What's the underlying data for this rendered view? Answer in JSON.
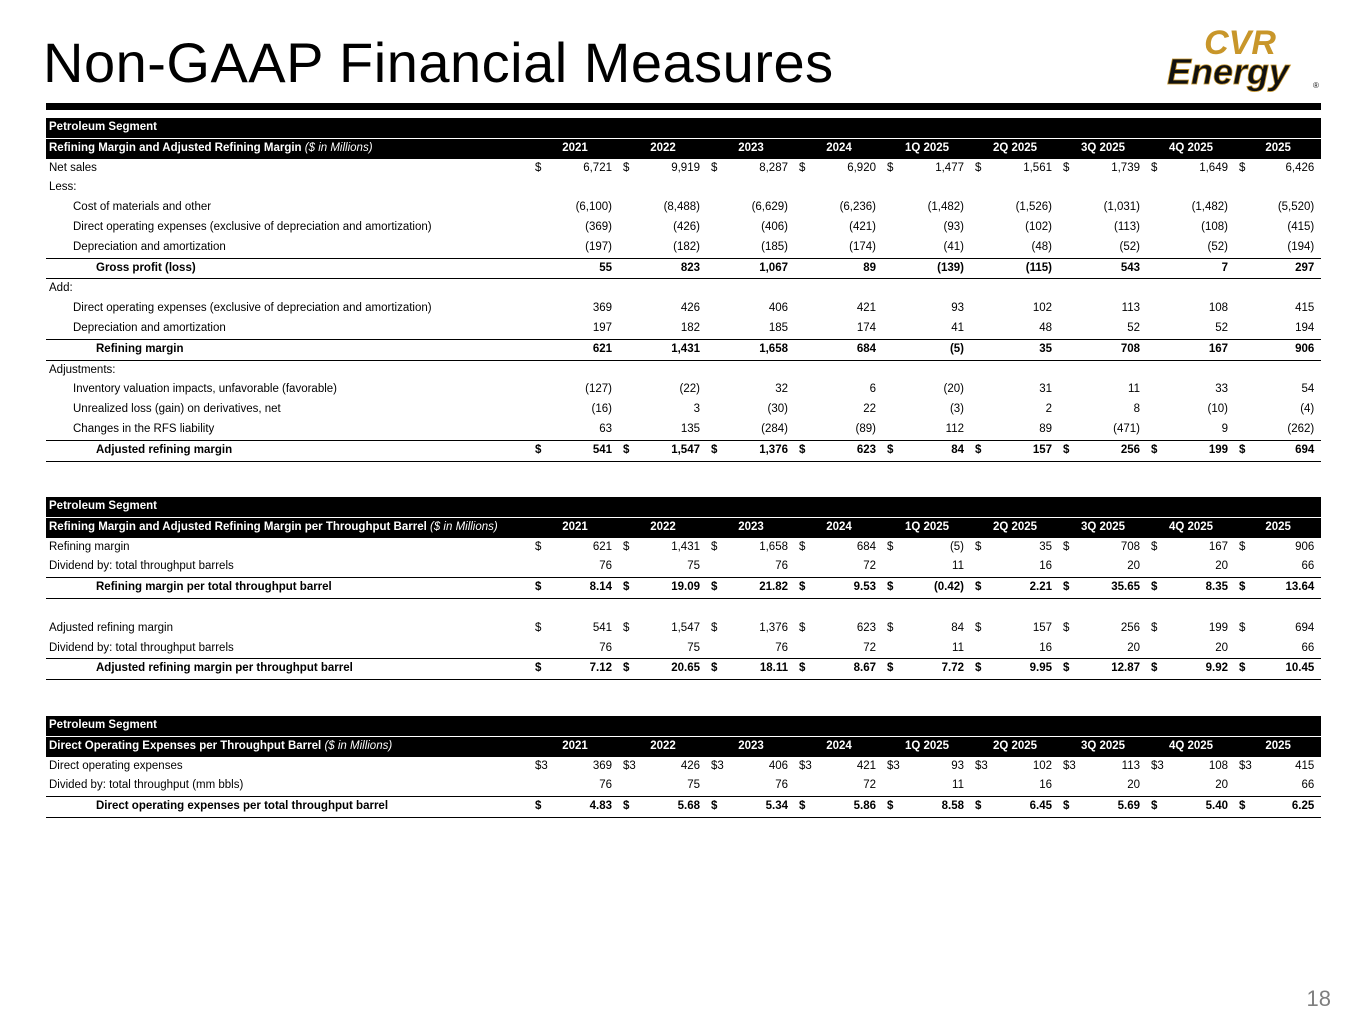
{
  "page": {
    "title": "Non-GAAP Financial Measures",
    "page_number": "18",
    "logo_text_top": "CVR",
    "logo_text_bottom": "Energy",
    "logo_registered": "®"
  },
  "colors": {
    "header_bg": "#000000",
    "header_text": "#ffffff",
    "logo_gold": "#c8962a",
    "logo_black": "#111111",
    "page_number": "#7f7f7f"
  },
  "table1": {
    "segment": "Petroleum Segment",
    "heading": "Refining Margin and Adjusted Refining Margin",
    "unit": "($ in Millions)",
    "columns": [
      "2021",
      "2022",
      "2023",
      "2024",
      "1Q 2025",
      "2Q 2025",
      "3Q 2025",
      "4Q 2025",
      "2025"
    ],
    "rows": [
      {
        "label": "Net sales",
        "indent": 0,
        "style": "",
        "cur": "$",
        "values": [
          "6,721",
          "9,919",
          "8,287",
          "6,920",
          "1,477",
          "1,561",
          "1,739",
          "1,649",
          "6,426"
        ]
      },
      {
        "label": "Less:",
        "indent": 0,
        "style": "",
        "cur": "",
        "values": [
          "",
          "",
          "",
          "",
          "",
          "",
          "",
          "",
          ""
        ]
      },
      {
        "label": "Cost of materials and other",
        "indent": 1,
        "style": "",
        "cur": "",
        "values": [
          "(6,100)",
          "(8,488)",
          "(6,629)",
          "(6,236)",
          "(1,482)",
          "(1,526)",
          "(1,031)",
          "(1,482)",
          "(5,520)"
        ]
      },
      {
        "label": "Direct operating expenses (exclusive of depreciation and amortization)",
        "indent": 1,
        "style": "",
        "cur": "",
        "values": [
          "(369)",
          "(426)",
          "(406)",
          "(421)",
          "(93)",
          "(102)",
          "(113)",
          "(108)",
          "(415)"
        ]
      },
      {
        "label": "Depreciation and amortization",
        "indent": 1,
        "style": "",
        "cur": "",
        "values": [
          "(197)",
          "(182)",
          "(185)",
          "(174)",
          "(41)",
          "(48)",
          "(52)",
          "(52)",
          "(194)"
        ]
      },
      {
        "label": "Gross profit (loss)",
        "indent": 2,
        "style": "total",
        "cur": "",
        "values": [
          "55",
          "823",
          "1,067",
          "89",
          "(139)",
          "(115)",
          "543",
          "7",
          "297"
        ]
      },
      {
        "label": "Add:",
        "indent": 0,
        "style": "",
        "cur": "",
        "values": [
          "",
          "",
          "",
          "",
          "",
          "",
          "",
          "",
          ""
        ]
      },
      {
        "label": "Direct operating expenses (exclusive of depreciation and amortization)",
        "indent": 1,
        "style": "",
        "cur": "",
        "values": [
          "369",
          "426",
          "406",
          "421",
          "93",
          "102",
          "113",
          "108",
          "415"
        ]
      },
      {
        "label": "Depreciation and amortization",
        "indent": 1,
        "style": "",
        "cur": "",
        "values": [
          "197",
          "182",
          "185",
          "174",
          "41",
          "48",
          "52",
          "52",
          "194"
        ]
      },
      {
        "label": "Refining margin",
        "indent": 2,
        "style": "total",
        "cur": "",
        "values": [
          "621",
          "1,431",
          "1,658",
          "684",
          "(5)",
          "35",
          "708",
          "167",
          "906"
        ]
      },
      {
        "label": "Adjustments:",
        "indent": 0,
        "style": "",
        "cur": "",
        "values": [
          "",
          "",
          "",
          "",
          "",
          "",
          "",
          "",
          ""
        ]
      },
      {
        "label": "Inventory valuation impacts, unfavorable (favorable)",
        "indent": 1,
        "style": "",
        "cur": "",
        "values": [
          "(127)",
          "(22)",
          "32",
          "6",
          "(20)",
          "31",
          "11",
          "33",
          "54"
        ]
      },
      {
        "label": "Unrealized loss (gain) on derivatives, net",
        "indent": 1,
        "style": "",
        "cur": "",
        "values": [
          "(16)",
          "3",
          "(30)",
          "22",
          "(3)",
          "2",
          "8",
          "(10)",
          "(4)"
        ]
      },
      {
        "label": "Changes in the RFS liability",
        "indent": 1,
        "style": "",
        "cur": "",
        "values": [
          "63",
          "135",
          "(284)",
          "(89)",
          "112",
          "89",
          "(471)",
          "9",
          "(262)"
        ]
      },
      {
        "label": "Adjusted refining margin",
        "indent": 2,
        "style": "total",
        "cur": "$",
        "values": [
          "541",
          "1,547",
          "1,376",
          "623",
          "84",
          "157",
          "256",
          "199",
          "694"
        ]
      }
    ]
  },
  "table2": {
    "segment": "Petroleum Segment",
    "heading": "Refining Margin and Adjusted Refining Margin per Throughput Barrel",
    "unit": "($ in Millions)",
    "columns": [
      "2021",
      "2022",
      "2023",
      "2024",
      "1Q 2025",
      "2Q 2025",
      "3Q 2025",
      "4Q 2025",
      "2025"
    ],
    "rows": [
      {
        "label": "Refining margin",
        "indent": 0,
        "style": "",
        "cur": "$",
        "values": [
          "621",
          "1,431",
          "1,658",
          "684",
          "(5)",
          "35",
          "708",
          "167",
          "906"
        ]
      },
      {
        "label": "Dividend by: total throughput barrels",
        "indent": 0,
        "style": "",
        "cur": "",
        "values": [
          "76",
          "75",
          "76",
          "72",
          "11",
          "16",
          "20",
          "20",
          "66"
        ]
      },
      {
        "label": "Refining margin per total throughput barrel",
        "indent": 2,
        "style": "total",
        "cur": "$",
        "values": [
          "8.14",
          "19.09",
          "21.82",
          "9.53",
          "(0.42)",
          "2.21",
          "35.65",
          "8.35",
          "13.64"
        ]
      },
      {
        "label": "",
        "indent": 0,
        "style": "",
        "cur": "",
        "values": [
          "",
          "",
          "",
          "",
          "",
          "",
          "",
          "",
          ""
        ]
      },
      {
        "label": "Adjusted refining margin",
        "indent": 0,
        "style": "",
        "cur": "$",
        "values": [
          "541",
          "1,547",
          "1,376",
          "623",
          "84",
          "157",
          "256",
          "199",
          "694"
        ]
      },
      {
        "label": "Dividend by: total throughput barrels",
        "indent": 0,
        "style": "",
        "cur": "",
        "values": [
          "76",
          "75",
          "76",
          "72",
          "11",
          "16",
          "20",
          "20",
          "66"
        ]
      },
      {
        "label": "Adjusted refining margin per throughput barrel",
        "indent": 2,
        "style": "total",
        "cur": "$",
        "values": [
          "7.12",
          "20.65",
          "18.11",
          "8.67",
          "7.72",
          "9.95",
          "12.87",
          "9.92",
          "10.45"
        ]
      }
    ]
  },
  "table3": {
    "segment": "Petroleum Segment",
    "heading": "Direct Operating Expenses per Throughput Barrel",
    "unit": "($ in Millions)",
    "columns": [
      "2021",
      "2022",
      "2023",
      "2024",
      "1Q 2025",
      "2Q 2025",
      "3Q 2025",
      "4Q 2025",
      "2025"
    ],
    "rows": [
      {
        "label": "Direct operating expenses",
        "indent": 0,
        "style": "",
        "cur": "$3",
        "values": [
          "369",
          "426",
          "406",
          "421",
          "93",
          "102",
          "113",
          "108",
          "415"
        ]
      },
      {
        "label": "Divided by: total throughput (mm bbls)",
        "indent": 0,
        "style": "",
        "cur": "",
        "values": [
          "76",
          "75",
          "76",
          "72",
          "11",
          "16",
          "20",
          "20",
          "66"
        ]
      },
      {
        "label": "Direct operating expenses per total throughput barrel",
        "indent": 2,
        "style": "total",
        "cur": "$",
        "values": [
          "4.83",
          "5.68",
          "5.34",
          "5.86",
          "8.58",
          "6.45",
          "5.69",
          "5.40",
          "6.25"
        ]
      }
    ]
  }
}
